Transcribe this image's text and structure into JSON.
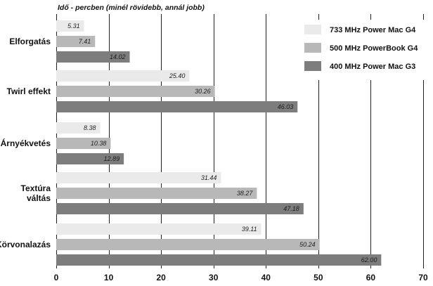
{
  "chart_data": {
    "type": "bar",
    "orientation": "horizontal",
    "title": "Idő - percben (minél rövidebb, annál jobb)",
    "xlabel": "",
    "ylabel": "",
    "xlim": [
      0,
      70
    ],
    "xticks": [
      0,
      10,
      20,
      30,
      40,
      50,
      60,
      70
    ],
    "grid": "vertical",
    "legend_position": "top-right",
    "categories": [
      [
        "Elforgatás"
      ],
      [
        "Twirl effekt"
      ],
      [
        "Árnyékvetés"
      ],
      [
        "Textúra",
        "váltás"
      ],
      [
        "Körvonalazás"
      ]
    ],
    "series": [
      {
        "name": "733 MHz Power Mac G4",
        "color": "#eaeaea",
        "values": [
          5.31,
          25.4,
          8.38,
          31.44,
          39.11
        ],
        "labels": [
          "5.31",
          "25.40",
          "8.38",
          "31.44",
          "39.11"
        ]
      },
      {
        "name": "500 MHz PowerBook G4",
        "color": "#b8b8b8",
        "values": [
          7.41,
          30.26,
          10.38,
          38.27,
          50.24
        ],
        "labels": [
          "7.41",
          "30.26",
          "10.38",
          "38.27",
          "50.24"
        ]
      },
      {
        "name": "400 MHz Power Mac G3",
        "color": "#7d7d7d",
        "values": [
          14.02,
          46.03,
          12.89,
          47.18,
          62.0
        ],
        "labels": [
          "14.02",
          "46.03",
          "12.89",
          "47.18",
          "62.00"
        ]
      }
    ]
  }
}
